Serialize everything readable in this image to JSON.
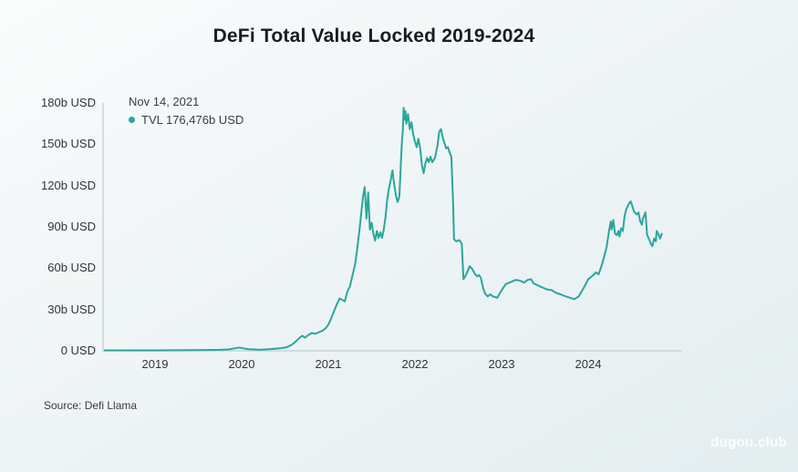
{
  "title": "DeFi Total Value Locked 2019-2024",
  "tooltip": {
    "date": "Nov 14, 2021",
    "value": "TVL 176,476b USD"
  },
  "source": "Source: Defi Llama",
  "watermark": "dugou.club",
  "colors": {
    "line": "#2aa69b",
    "legend_dot": "#2aa69b",
    "axis": "#c8d4d6",
    "title_text": "#1b1b26",
    "label_text": "#33333d",
    "watermark_text": "#ffffff"
  },
  "chart_data": {
    "type": "line",
    "title": "DeFi Total Value Locked 2019-2024",
    "xlabel": "",
    "ylabel": "",
    "grid": false,
    "legend_position": "top-left",
    "xlim": [
      2018.42,
      2025.1
    ],
    "ylim": [
      0,
      180
    ],
    "x_ticks": [
      {
        "year": 2019,
        "label": "2019"
      },
      {
        "year": 2020,
        "label": "2020"
      },
      {
        "year": 2021,
        "label": "2021"
      },
      {
        "year": 2022,
        "label": "2022"
      },
      {
        "year": 2023,
        "label": "2023"
      },
      {
        "year": 2024,
        "label": "2024"
      }
    ],
    "y_ticks": [
      {
        "value": 0,
        "label": "0 USD"
      },
      {
        "value": 30,
        "label": "30b USD"
      },
      {
        "value": 60,
        "label": "60b USD"
      },
      {
        "value": 90,
        "label": "90b USD"
      },
      {
        "value": 120,
        "label": "120b USD"
      },
      {
        "value": 150,
        "label": "150b USD"
      },
      {
        "value": 180,
        "label": "180b USD"
      }
    ],
    "highlight_point": {
      "date": "Nov 14, 2021",
      "x": 2021.87,
      "value": 176.476
    },
    "series": [
      {
        "name": "TVL",
        "unit": "b USD",
        "color": "#2aa69b",
        "points": [
          [
            2018.42,
            0.2
          ],
          [
            2018.6,
            0.2
          ],
          [
            2018.8,
            0.3
          ],
          [
            2019.0,
            0.3
          ],
          [
            2019.2,
            0.4
          ],
          [
            2019.4,
            0.5
          ],
          [
            2019.6,
            0.6
          ],
          [
            2019.75,
            0.7
          ],
          [
            2019.85,
            1.0
          ],
          [
            2019.92,
            1.8
          ],
          [
            2019.97,
            2.3
          ],
          [
            2020.02,
            1.8
          ],
          [
            2020.08,
            1.2
          ],
          [
            2020.15,
            1.0
          ],
          [
            2020.2,
            0.7
          ],
          [
            2020.27,
            1.0
          ],
          [
            2020.35,
            1.3
          ],
          [
            2020.45,
            1.9
          ],
          [
            2020.52,
            2.6
          ],
          [
            2020.58,
            4.5
          ],
          [
            2020.62,
            6.5
          ],
          [
            2020.66,
            9.0
          ],
          [
            2020.7,
            11.0
          ],
          [
            2020.73,
            9.5
          ],
          [
            2020.77,
            11.5
          ],
          [
            2020.81,
            13.0
          ],
          [
            2020.85,
            12.3
          ],
          [
            2020.89,
            13.5
          ],
          [
            2020.93,
            14.5
          ],
          [
            2020.97,
            16.5
          ],
          [
            2021.0,
            19
          ],
          [
            2021.03,
            23
          ],
          [
            2021.06,
            28
          ],
          [
            2021.1,
            34
          ],
          [
            2021.13,
            38
          ],
          [
            2021.16,
            37
          ],
          [
            2021.19,
            36
          ],
          [
            2021.22,
            43
          ],
          [
            2021.25,
            47
          ],
          [
            2021.28,
            55
          ],
          [
            2021.31,
            63
          ],
          [
            2021.33,
            72
          ],
          [
            2021.36,
            88
          ],
          [
            2021.38,
            100
          ],
          [
            2021.4,
            112
          ],
          [
            2021.42,
            119
          ],
          [
            2021.44,
            96
          ],
          [
            2021.46,
            115
          ],
          [
            2021.48,
            88
          ],
          [
            2021.5,
            93
          ],
          [
            2021.52,
            85
          ],
          [
            2021.54,
            80
          ],
          [
            2021.56,
            87
          ],
          [
            2021.58,
            82
          ],
          [
            2021.6,
            86
          ],
          [
            2021.62,
            82
          ],
          [
            2021.64,
            88
          ],
          [
            2021.66,
            97
          ],
          [
            2021.68,
            110
          ],
          [
            2021.7,
            118
          ],
          [
            2021.72,
            124
          ],
          [
            2021.74,
            131
          ],
          [
            2021.76,
            121
          ],
          [
            2021.78,
            113
          ],
          [
            2021.8,
            108
          ],
          [
            2021.82,
            112
          ],
          [
            2021.83,
            125
          ],
          [
            2021.84,
            140
          ],
          [
            2021.85,
            152
          ],
          [
            2021.86,
            160
          ],
          [
            2021.87,
            176.5
          ],
          [
            2021.88,
            168
          ],
          [
            2021.89,
            174
          ],
          [
            2021.9,
            165
          ],
          [
            2021.92,
            172
          ],
          [
            2021.94,
            161
          ],
          [
            2021.96,
            166
          ],
          [
            2021.98,
            157
          ],
          [
            2022.0,
            152
          ],
          [
            2022.02,
            148
          ],
          [
            2022.04,
            154
          ],
          [
            2022.06,
            147
          ],
          [
            2022.08,
            135
          ],
          [
            2022.1,
            129
          ],
          [
            2022.12,
            136
          ],
          [
            2022.14,
            140
          ],
          [
            2022.16,
            137
          ],
          [
            2022.18,
            141
          ],
          [
            2022.2,
            137
          ],
          [
            2022.23,
            140
          ],
          [
            2022.26,
            149
          ],
          [
            2022.28,
            159
          ],
          [
            2022.3,
            161
          ],
          [
            2022.32,
            155
          ],
          [
            2022.34,
            151
          ],
          [
            2022.36,
            147
          ],
          [
            2022.38,
            148
          ],
          [
            2022.4,
            144
          ],
          [
            2022.42,
            141
          ],
          [
            2022.44,
            108
          ],
          [
            2022.45,
            81
          ],
          [
            2022.48,
            79.5
          ],
          [
            2022.51,
            80.5
          ],
          [
            2022.54,
            78
          ],
          [
            2022.56,
            52
          ],
          [
            2022.58,
            54
          ],
          [
            2022.61,
            58
          ],
          [
            2022.63,
            61.5
          ],
          [
            2022.66,
            59.5
          ],
          [
            2022.69,
            56
          ],
          [
            2022.72,
            54
          ],
          [
            2022.74,
            55
          ],
          [
            2022.76,
            53
          ],
          [
            2022.79,
            45
          ],
          [
            2022.81,
            41.5
          ],
          [
            2022.84,
            39.5
          ],
          [
            2022.87,
            41
          ],
          [
            2022.9,
            39.5
          ],
          [
            2022.95,
            38.5
          ],
          [
            2023.0,
            44
          ],
          [
            2023.05,
            48.5
          ],
          [
            2023.11,
            50
          ],
          [
            2023.16,
            51.5
          ],
          [
            2023.21,
            51
          ],
          [
            2023.26,
            49.5
          ],
          [
            2023.3,
            51.5
          ],
          [
            2023.34,
            52
          ],
          [
            2023.37,
            49
          ],
          [
            2023.42,
            47.5
          ],
          [
            2023.47,
            46
          ],
          [
            2023.53,
            44.5
          ],
          [
            2023.58,
            44
          ],
          [
            2023.63,
            42
          ],
          [
            2023.68,
            41
          ],
          [
            2023.74,
            39.5
          ],
          [
            2023.79,
            38.5
          ],
          [
            2023.84,
            37.5
          ],
          [
            2023.89,
            39.5
          ],
          [
            2023.95,
            46
          ],
          [
            2024.0,
            52
          ],
          [
            2024.05,
            54.5
          ],
          [
            2024.09,
            57
          ],
          [
            2024.12,
            55.5
          ],
          [
            2024.16,
            63
          ],
          [
            2024.19,
            70
          ],
          [
            2024.21,
            75
          ],
          [
            2024.24,
            87
          ],
          [
            2024.26,
            94
          ],
          [
            2024.27,
            88
          ],
          [
            2024.29,
            95
          ],
          [
            2024.31,
            85
          ],
          [
            2024.33,
            84
          ],
          [
            2024.35,
            87
          ],
          [
            2024.36,
            83
          ],
          [
            2024.38,
            89
          ],
          [
            2024.4,
            87
          ],
          [
            2024.42,
            98
          ],
          [
            2024.44,
            103
          ],
          [
            2024.47,
            107
          ],
          [
            2024.49,
            108.5
          ],
          [
            2024.51,
            105
          ],
          [
            2024.53,
            101
          ],
          [
            2024.56,
            99
          ],
          [
            2024.58,
            100.5
          ],
          [
            2024.6,
            94
          ],
          [
            2024.62,
            91.5
          ],
          [
            2024.63,
            96
          ],
          [
            2024.65,
            99
          ],
          [
            2024.66,
            100.5
          ],
          [
            2024.68,
            84
          ],
          [
            2024.7,
            81.5
          ],
          [
            2024.72,
            78
          ],
          [
            2024.74,
            76
          ],
          [
            2024.76,
            81.5
          ],
          [
            2024.78,
            79.5
          ],
          [
            2024.79,
            87
          ],
          [
            2024.81,
            85
          ],
          [
            2024.83,
            81.5
          ],
          [
            2024.85,
            85
          ]
        ]
      }
    ]
  }
}
